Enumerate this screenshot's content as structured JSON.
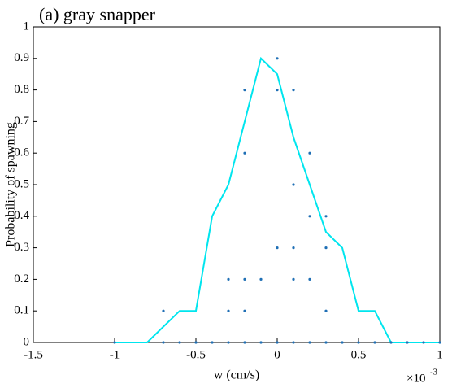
{
  "chart_data": {
    "type": "scatter",
    "title": "(a) gray snapper",
    "xlabel": "w (cm/s)",
    "ylabel": "Probability of spawning",
    "x_multiplier": {
      "base": "×10",
      "exponent": "-3"
    },
    "xlim": [
      -1.5,
      1
    ],
    "xticks": [
      -1.5,
      -1,
      -0.5,
      0,
      0.5,
      1
    ],
    "ylim": [
      0,
      1
    ],
    "yticks": [
      0,
      0.1,
      0.2,
      0.3,
      0.4,
      0.5,
      0.6,
      0.7,
      0.8,
      0.9,
      1
    ],
    "series": [
      {
        "type": "line",
        "color": "#00e5ee",
        "x": [
          -1.0,
          -0.8,
          -0.6,
          -0.5,
          -0.4,
          -0.3,
          -0.1,
          0,
          0.1,
          0.2,
          0.3,
          0.4,
          0.5,
          0.6,
          0.7,
          1.0
        ],
        "values": [
          0,
          0,
          0.1,
          0.1,
          0.4,
          0.5,
          0.9,
          0.85,
          0.65,
          0.5,
          0.35,
          0.3,
          0.1,
          0.1,
          0,
          0
        ]
      },
      {
        "type": "scatter",
        "color": "#1f6fb5",
        "x": [
          -1.0,
          -0.7,
          -0.6,
          -0.5,
          -0.4,
          -0.3,
          -0.2,
          -0.1,
          0,
          0.1,
          0.2,
          0.3,
          0.4,
          0.5,
          0.6,
          0.7,
          0.8,
          0.9,
          1.0,
          -0.7,
          -0.3,
          -0.2,
          0.3,
          -0.3,
          -0.2,
          -0.1,
          0.1,
          0.2,
          0,
          0.1,
          0.3,
          0.2,
          0.3,
          0.1,
          -0.2,
          0.2,
          -0.2,
          0,
          0.1,
          0
        ],
        "values": [
          0,
          0,
          0,
          0,
          0,
          0,
          0,
          0,
          0,
          0,
          0,
          0,
          0,
          0,
          0,
          0,
          0,
          0,
          0,
          0.1,
          0.1,
          0.1,
          0.1,
          0.2,
          0.2,
          0.2,
          0.2,
          0.2,
          0.3,
          0.3,
          0.3,
          0.4,
          0.4,
          0.5,
          0.6,
          0.6,
          0.8,
          0.8,
          0.8,
          0.9
        ]
      }
    ]
  }
}
